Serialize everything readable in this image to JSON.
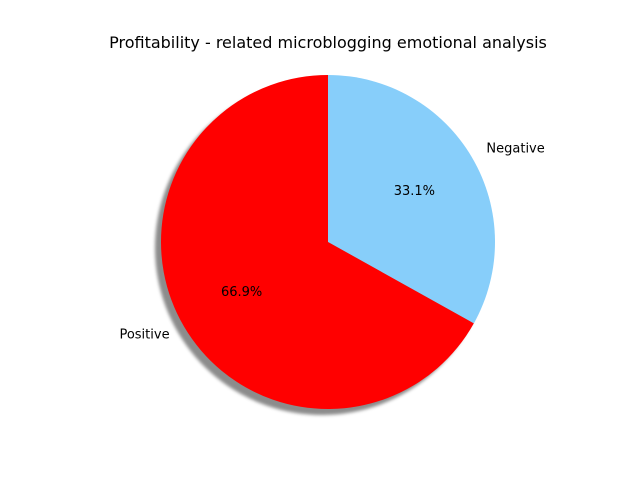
{
  "chart_data": {
    "type": "pie",
    "title": "Profitability - related microblogging emotional analysis",
    "slices": [
      {
        "label": "Negative",
        "value": 33.1,
        "percent_label": "33.1%",
        "color": "#87CEFA"
      },
      {
        "label": "Positive",
        "value": 66.9,
        "percent_label": "66.9%",
        "color": "#FF0000"
      }
    ],
    "start_angle_deg": 90,
    "direction": "clockwise",
    "shadow": true,
    "legend": "none"
  }
}
